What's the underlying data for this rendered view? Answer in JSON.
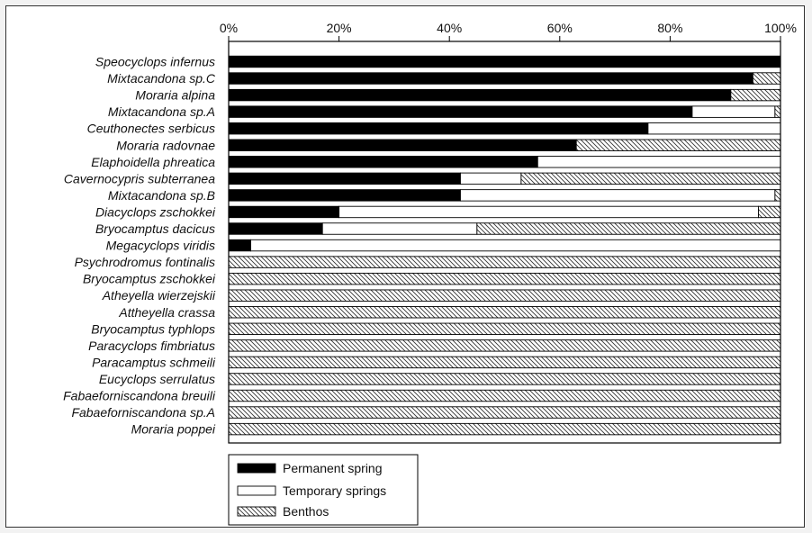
{
  "chart_data": {
    "type": "bar",
    "orientation": "horizontal",
    "stacked": true,
    "percent": true,
    "title": "",
    "xlabel": "",
    "ylabel": "",
    "xlim": [
      0,
      100
    ],
    "x_ticks": [
      "0%",
      "20%",
      "40%",
      "60%",
      "80%",
      "100%"
    ],
    "grid": false,
    "legend_position": "bottom-left",
    "categories": [
      "Speocyclops infernus",
      "Mixtacandona sp.C",
      "Moraria alpina",
      "Mixtacandona sp.A",
      "Ceuthonectes serbicus",
      "Moraria radovnae",
      "Elaphoidella phreatica",
      "Cavernocypris subterranea",
      "Mixtacandona sp.B",
      "Diacyclops zschokkei",
      "Bryocamptus dacicus",
      "Megacyclops viridis",
      "Psychrodromus fontinalis",
      "Bryocamptus zschokkei",
      "Atheyella wierzejskii",
      "Attheyella crassa",
      "Bryocamptus typhlops",
      "Paracyclops fimbriatus",
      "Paracamptus schmeili",
      "Eucyclops serrulatus",
      "Fabaeforniscandona breuili",
      "Fabaeforniscandona sp.A",
      "Moraria poppei"
    ],
    "series": [
      {
        "name": "Permanent spring",
        "pattern": "solid-black",
        "values": [
          100,
          95,
          91,
          84,
          76,
          63,
          56,
          42,
          42,
          20,
          17,
          4,
          0,
          0,
          0,
          0,
          0,
          0,
          0,
          0,
          0,
          0,
          0
        ]
      },
      {
        "name": "Temporary springs",
        "pattern": "white",
        "values": [
          0,
          0,
          0,
          15,
          24,
          0,
          44,
          11,
          57,
          76,
          28,
          96,
          0,
          0,
          0,
          0,
          0,
          0,
          0,
          0,
          0,
          0,
          0
        ]
      },
      {
        "name": "Benthos",
        "pattern": "diagonal-hatch",
        "values": [
          0,
          5,
          9,
          1,
          0,
          37,
          0,
          47,
          1,
          4,
          55,
          0,
          100,
          100,
          100,
          100,
          100,
          100,
          100,
          100,
          100,
          100,
          100
        ]
      }
    ]
  },
  "colors": {
    "permanent": "#000000",
    "temporary": "#ffffff",
    "hatch_line": "#333333",
    "axis": "#000000"
  }
}
